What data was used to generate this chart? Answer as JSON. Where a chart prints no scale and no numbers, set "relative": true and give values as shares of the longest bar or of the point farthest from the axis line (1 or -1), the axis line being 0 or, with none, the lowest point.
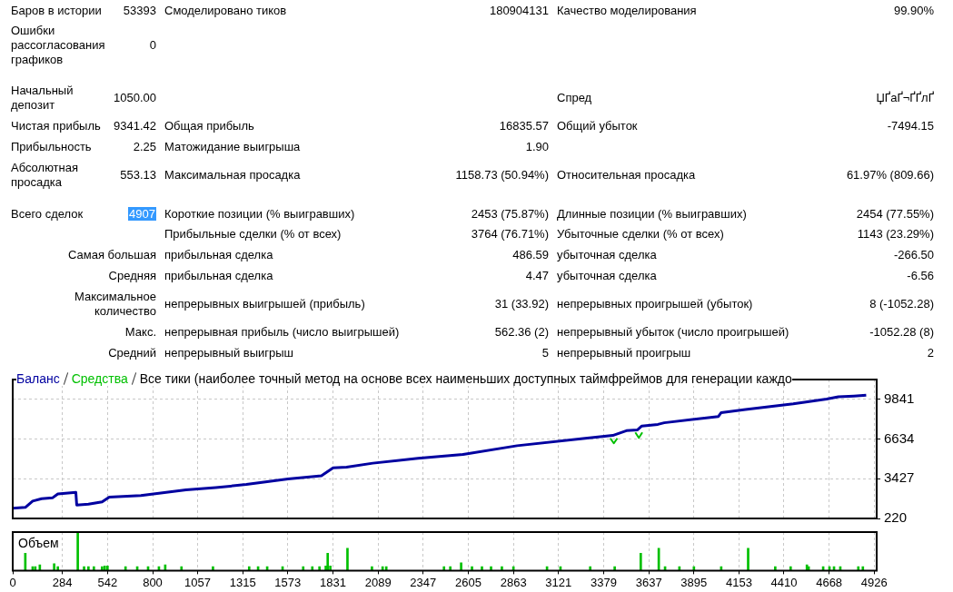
{
  "chart_data": [
    {
      "type": "other",
      "annotations": [
        "Баров в истории",
        "53393",
        "Смоделировано тиков",
        "180904131",
        "Качество моделирования",
        "99.90%",
        "Ошибки рассогласования графиков",
        "0",
        "Начальный депозит",
        "1050.00",
        "Спред",
        "ЏҐаҐ¬ҐҐлҐ",
        "Чистая прибыль",
        "9341.42",
        "Общая прибыль",
        "16835.57",
        "Общий убыток",
        "-7494.15",
        "Прибыльность",
        "2.25",
        "Матожидание выигрыша",
        "1.90",
        "Абсолютная просадка",
        "553.13",
        "Максимальная просадка",
        "1158.73 (50.94%)",
        "Относительная просадка",
        "61.97% (809.66)",
        "Всего сделок",
        "4907",
        "Короткие позиции (% выигравших)",
        "2453 (75.87%)",
        "Длинные позиции (% выигравших)",
        "2454 (77.55%)",
        "Прибыльные сделки (% от всех)",
        "3764 (76.71%)",
        "Убыточные сделки (% от всех)",
        "1143 (23.29%)",
        "Самая большая",
        "прибыльная сделка",
        "486.59",
        "убыточная сделка",
        "-266.50",
        "Средняя",
        "прибыльная сделка",
        "4.47",
        "убыточная сделка",
        "-6.56",
        "Максимальное количество",
        "непрерывных выигрышей (прибыль)",
        "31 (33.92)",
        "непрерывных проигрышей (убыток)",
        "8 (-1052.28)",
        "Макс.",
        "непрерывная прибыль (число выигрышей)",
        "562.36 (2)",
        "непрерывный убыток (число проигрышей)",
        "-1052.28 (8)",
        "Средний",
        "непрерывный выигрыш",
        "5",
        "непрерывный проигрыш",
        "2"
      ]
    },
    {
      "type": "line",
      "title": "Все тики (наиболее точный метод на основе всех наименьших доступных таймфреймов для генерации каждо",
      "series": [
        {
          "name": "Баланс",
          "color": "#0000a0",
          "x": [
            0,
            72,
            114,
            165,
            227,
            258,
            361,
            366,
            433,
            511,
            552,
            733,
            991,
            1161,
            1336,
            1574,
            1765,
            1832,
            1909,
            2059,
            2317,
            2575,
            2884,
            3261,
            3431,
            3509,
            3571,
            3597,
            3689,
            3725,
            4035,
            4051,
            4190,
            4463,
            4654,
            4721,
            4809,
            4880
          ],
          "values": [
            1050,
            1110,
            1620,
            1810,
            1880,
            2200,
            2320,
            1300,
            1370,
            1560,
            1940,
            2070,
            2520,
            2710,
            2960,
            3410,
            3660,
            4300,
            4360,
            4680,
            5070,
            5390,
            6090,
            6660,
            6920,
            7300,
            7360,
            7680,
            7810,
            7940,
            8450,
            8760,
            9020,
            9470,
            9850,
            10040,
            10100,
            10170
          ]
        },
        {
          "name": "Средства",
          "color": "#00c000",
          "x": [
            3417,
            3437,
            3457,
            3500,
            3560,
            3580,
            3600
          ],
          "values": [
            6690,
            6280,
            6690,
            null,
            7160,
            6720,
            7160
          ]
        }
      ],
      "xlim": [
        0,
        4940
      ],
      "xticks": [
        0,
        284,
        542,
        800,
        1057,
        1315,
        1573,
        1831,
        2089,
        2347,
        2605,
        2863,
        3121,
        3379,
        3637,
        3895,
        4153,
        4410,
        4668,
        4926
      ],
      "ylim": [
        220,
        11430
      ],
      "yticks": [
        220,
        3427,
        6634,
        9841
      ],
      "grid": true,
      "legend": "top left",
      "tick_labels": "y",
      "marker": "none"
    },
    {
      "type": "bar",
      "title": "Объем",
      "color": "#00c000",
      "relative": true,
      "x": [
        72,
        114,
        129,
        155,
        237,
        258,
        372,
        408,
        433,
        464,
        511,
        526,
        542,
        645,
        712,
        774,
        836,
        872,
        965,
        1145,
        1352,
        1403,
        1455,
        1543,
        1661,
        1713,
        1754,
        1790,
        1801,
        1816,
        1914,
        2054,
        2115,
        2136,
        2466,
        2502,
        2564,
        2626,
        2683,
        2735,
        2797,
        2863,
        3055,
        3132,
        3302,
        3442,
        3591,
        3694,
        3730,
        3812,
        3895,
        4051,
        4205,
        4360,
        4448,
        4541,
        4551,
        4634,
        4670,
        4696,
        4732,
        4835,
        4861
      ],
      "values": [
        0.45,
        0.1,
        0.1,
        0.15,
        0.18,
        0.1,
        1,
        0.1,
        0.1,
        0.1,
        0.1,
        0.12,
        0.12,
        0.1,
        0.1,
        0.1,
        0.1,
        0.15,
        0.1,
        0.1,
        0.1,
        0.1,
        0.1,
        0.1,
        0.1,
        0.1,
        0.1,
        0.12,
        0.45,
        0.12,
        0.58,
        0.1,
        0.1,
        0.1,
        0.1,
        0.1,
        0.2,
        0.1,
        0.1,
        0.1,
        0.1,
        0.1,
        0.1,
        0.1,
        0.1,
        0.1,
        0.45,
        0.58,
        0.1,
        0.1,
        0.1,
        0.1,
        0.58,
        0.1,
        0.1,
        0.15,
        0.1,
        0.1,
        0.1,
        0.1,
        0.1,
        0.1,
        0.1
      ],
      "xlim": [
        0,
        4940
      ],
      "xticks": [
        0,
        284,
        542,
        800,
        1057,
        1315,
        1573,
        1831,
        2089,
        2347,
        2605,
        2863,
        3121,
        3379,
        3637,
        3895,
        4153,
        4410,
        4668,
        4926
      ],
      "grid": "x",
      "tick_labels": "x"
    }
  ]
}
